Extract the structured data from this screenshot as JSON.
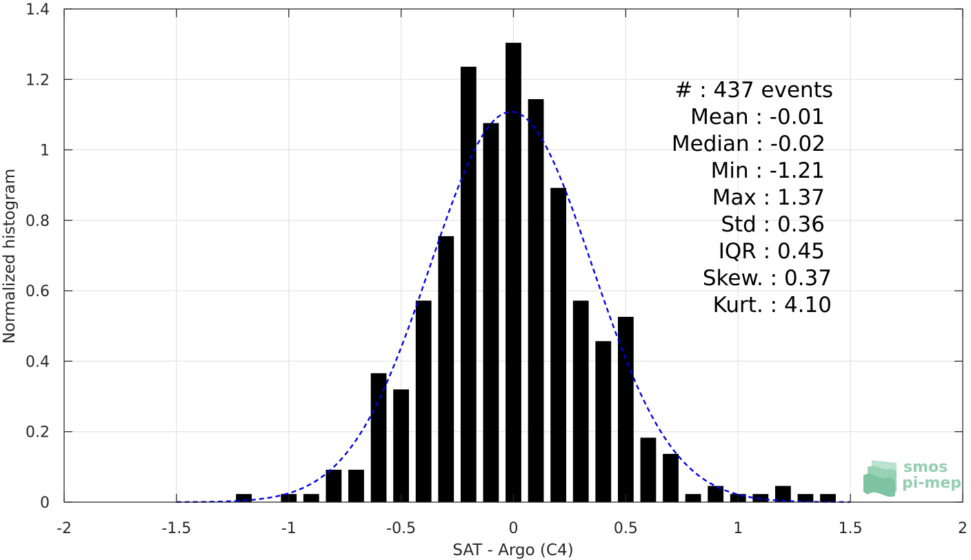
{
  "chart_data": {
    "type": "bar",
    "title": "",
    "xlabel": "SAT - Argo (C4)",
    "ylabel": "Normalized histogram",
    "xlim": [
      -2,
      2
    ],
    "ylim": [
      0,
      1.4
    ],
    "xticks": [
      -2,
      -1.5,
      -1,
      -0.5,
      0,
      0.5,
      1,
      1.5,
      2
    ],
    "xtick_labels": [
      "-2",
      "-1.5",
      "-1",
      "-0.5",
      "0",
      "0.5",
      "1",
      "1.5",
      "2"
    ],
    "yticks": [
      0,
      0.2,
      0.4,
      0.6,
      0.8,
      1,
      1.2,
      1.4
    ],
    "ytick_labels": [
      "0",
      "0.2",
      "0.4",
      "0.6",
      "0.8",
      "1",
      "1.2",
      "1.4"
    ],
    "grid": true,
    "bar_width": 0.07,
    "bar_color": "#000000",
    "bars": [
      {
        "x": -1.2,
        "value": 0.023
      },
      {
        "x": -1.0,
        "value": 0.023
      },
      {
        "x": -0.9,
        "value": 0.023
      },
      {
        "x": -0.8,
        "value": 0.092
      },
      {
        "x": -0.7,
        "value": 0.092
      },
      {
        "x": -0.6,
        "value": 0.366
      },
      {
        "x": -0.5,
        "value": 0.32
      },
      {
        "x": -0.4,
        "value": 0.572
      },
      {
        "x": -0.3,
        "value": 0.755
      },
      {
        "x": -0.2,
        "value": 1.236
      },
      {
        "x": -0.1,
        "value": 1.076
      },
      {
        "x": 0.0,
        "value": 1.304
      },
      {
        "x": 0.1,
        "value": 1.144
      },
      {
        "x": 0.2,
        "value": 0.892
      },
      {
        "x": 0.3,
        "value": 0.572
      },
      {
        "x": 0.4,
        "value": 0.457
      },
      {
        "x": 0.5,
        "value": 0.526
      },
      {
        "x": 0.6,
        "value": 0.183
      },
      {
        "x": 0.7,
        "value": 0.137
      },
      {
        "x": 0.8,
        "value": 0.023
      },
      {
        "x": 0.9,
        "value": 0.046
      },
      {
        "x": 1.0,
        "value": 0.023
      },
      {
        "x": 1.1,
        "value": 0.023
      },
      {
        "x": 1.2,
        "value": 0.046
      },
      {
        "x": 1.3,
        "value": 0.023
      },
      {
        "x": 1.4,
        "value": 0.023
      }
    ],
    "fit_curve": {
      "style": "dashed",
      "color": "#0000e6",
      "mean": -0.01,
      "std": 0.36,
      "x_range": [
        -1.5,
        1.5
      ]
    },
    "annotations": [
      "#  : 437 events",
      "Mean : -0.01",
      "Median : -0.02",
      "Min : -1.21",
      "Max : 1.37",
      "Std : 0.36",
      "IQR : 0.45",
      "Skew. : 0.37",
      "Kurt. : 4.10"
    ]
  },
  "logo": {
    "line1": "smos",
    "line2": "pi-mep",
    "color": "#7dc3a0"
  }
}
